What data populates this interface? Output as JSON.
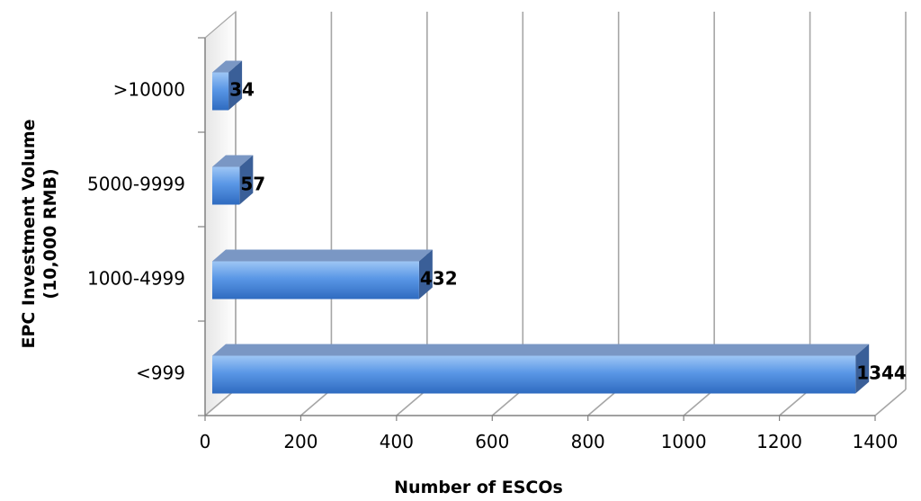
{
  "chart_data": {
    "type": "bar",
    "orientation": "horizontal",
    "style": "3d",
    "categories": [
      "<999",
      "1000-4999",
      "5000-9999",
      ">10000"
    ],
    "values": [
      1344,
      432,
      57,
      34
    ],
    "xlabel": "Number of ESCOs",
    "ylabel_lines": [
      "EPC Investment Volume",
      "(10,000 RMB)"
    ],
    "xlim": [
      0,
      1400
    ],
    "xticks": [
      "0",
      "200",
      "400",
      "600",
      "800",
      "1000",
      "1200",
      "1400"
    ],
    "grid": true,
    "legend": "none",
    "colors": {
      "bar_light": "#9ec6f5",
      "bar_mid": "#5a97e6",
      "bar_dark": "#2f6bc0",
      "bar_top": "#7a97c4",
      "bar_side": "#3a5f98",
      "grid": "#a6a6a6",
      "wall": "#d9d9d9"
    }
  }
}
